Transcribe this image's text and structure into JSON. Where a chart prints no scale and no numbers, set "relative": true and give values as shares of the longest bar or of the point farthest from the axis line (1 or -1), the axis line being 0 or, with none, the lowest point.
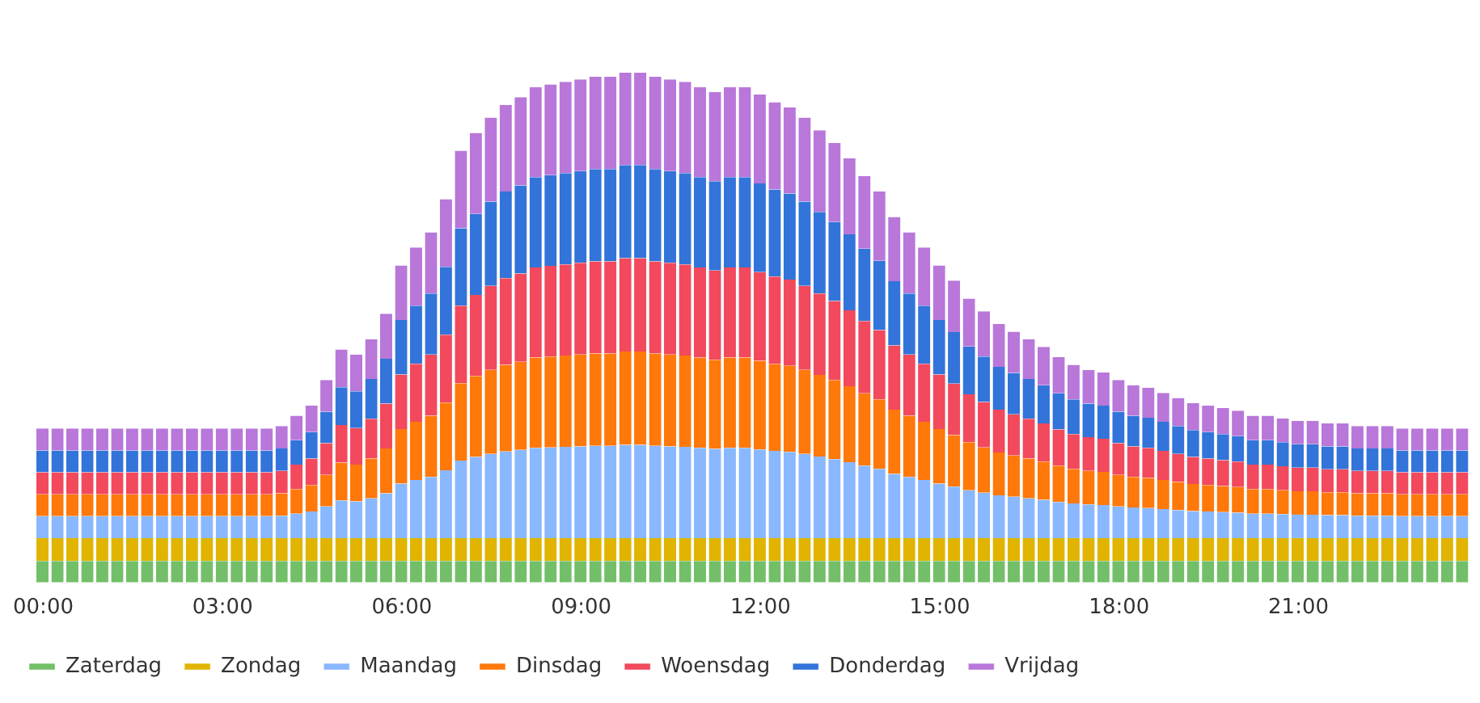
{
  "chart_data": {
    "type": "bar",
    "stacked": true,
    "relative": true,
    "legend": "bottom left",
    "grid": false,
    "tick_labels": "x",
    "categories": [
      "00:00",
      null,
      null,
      null,
      null,
      null,
      null,
      null,
      null,
      null,
      null,
      null,
      "03:00",
      null,
      null,
      null,
      null,
      null,
      null,
      null,
      null,
      null,
      null,
      null,
      "06:00",
      null,
      null,
      null,
      null,
      null,
      null,
      null,
      null,
      null,
      null,
      null,
      "09:00",
      null,
      null,
      null,
      null,
      null,
      null,
      null,
      null,
      null,
      null,
      null,
      "12:00",
      null,
      null,
      null,
      null,
      null,
      null,
      null,
      null,
      null,
      null,
      null,
      "15:00",
      null,
      null,
      null,
      null,
      null,
      null,
      null,
      null,
      null,
      null,
      null,
      "18:00",
      null,
      null,
      null,
      null,
      null,
      null,
      null,
      null,
      null,
      null,
      null,
      "21:00",
      null,
      null,
      null,
      null,
      null,
      null,
      null,
      null,
      null,
      null,
      null
    ],
    "series": [
      {
        "name": "Zaterdag",
        "color": "#73bf69",
        "values": [
          0.042,
          0.042,
          0.042,
          0.042,
          0.042,
          0.042,
          0.042,
          0.042,
          0.042,
          0.042,
          0.042,
          0.042,
          0.042,
          0.042,
          0.042,
          0.042,
          0.042,
          0.042,
          0.042,
          0.042,
          0.042,
          0.042,
          0.042,
          0.042,
          0.042,
          0.042,
          0.042,
          0.042,
          0.042,
          0.042,
          0.042,
          0.042,
          0.042,
          0.042,
          0.042,
          0.042,
          0.042,
          0.042,
          0.042,
          0.042,
          0.042,
          0.042,
          0.042,
          0.042,
          0.042,
          0.042,
          0.042,
          0.042,
          0.042,
          0.042,
          0.042,
          0.042,
          0.042,
          0.042,
          0.042,
          0.042,
          0.042,
          0.042,
          0.042,
          0.042,
          0.042,
          0.042,
          0.042,
          0.042,
          0.042,
          0.042,
          0.042,
          0.042,
          0.042,
          0.042,
          0.042,
          0.042,
          0.042,
          0.042,
          0.042,
          0.042,
          0.042,
          0.042,
          0.042,
          0.042,
          0.042,
          0.042,
          0.042,
          0.042,
          0.042,
          0.042,
          0.042,
          0.042,
          0.042,
          0.042,
          0.042,
          0.042,
          0.042,
          0.042,
          0.042,
          0.042
        ]
      },
      {
        "name": "Zondag",
        "color": "#e0b400",
        "values": [
          0.045,
          0.045,
          0.045,
          0.045,
          0.045,
          0.045,
          0.045,
          0.045,
          0.045,
          0.045,
          0.045,
          0.045,
          0.045,
          0.045,
          0.045,
          0.045,
          0.045,
          0.045,
          0.045,
          0.045,
          0.045,
          0.045,
          0.045,
          0.045,
          0.045,
          0.045,
          0.045,
          0.045,
          0.045,
          0.045,
          0.045,
          0.045,
          0.045,
          0.045,
          0.045,
          0.045,
          0.045,
          0.045,
          0.045,
          0.045,
          0.045,
          0.045,
          0.045,
          0.045,
          0.045,
          0.045,
          0.045,
          0.045,
          0.045,
          0.045,
          0.045,
          0.045,
          0.045,
          0.045,
          0.045,
          0.045,
          0.045,
          0.045,
          0.045,
          0.045,
          0.045,
          0.045,
          0.045,
          0.045,
          0.045,
          0.045,
          0.045,
          0.045,
          0.045,
          0.045,
          0.045,
          0.045,
          0.045,
          0.045,
          0.045,
          0.045,
          0.045,
          0.045,
          0.045,
          0.045,
          0.045,
          0.045,
          0.045,
          0.045,
          0.045,
          0.045,
          0.045,
          0.045,
          0.045,
          0.045,
          0.045,
          0.045,
          0.045,
          0.045,
          0.045,
          0.045
        ]
      },
      {
        "name": "Maandag",
        "color": "#8ab8ff",
        "values": [
          0.043,
          0.043,
          0.043,
          0.043,
          0.043,
          0.043,
          0.043,
          0.043,
          0.043,
          0.043,
          0.043,
          0.043,
          0.043,
          0.043,
          0.043,
          0.043,
          0.044,
          0.048,
          0.052,
          0.062,
          0.074,
          0.072,
          0.078,
          0.088,
          0.107,
          0.114,
          0.12,
          0.133,
          0.152,
          0.159,
          0.165,
          0.17,
          0.173,
          0.177,
          0.178,
          0.179,
          0.18,
          0.181,
          0.181,
          0.183,
          0.183,
          0.181,
          0.18,
          0.179,
          0.177,
          0.175,
          0.177,
          0.177,
          0.174,
          0.171,
          0.169,
          0.165,
          0.16,
          0.155,
          0.149,
          0.142,
          0.136,
          0.126,
          0.12,
          0.114,
          0.107,
          0.101,
          0.094,
          0.089,
          0.084,
          0.081,
          0.078,
          0.075,
          0.071,
          0.068,
          0.066,
          0.065,
          0.062,
          0.06,
          0.059,
          0.057,
          0.055,
          0.053,
          0.052,
          0.051,
          0.05,
          0.048,
          0.048,
          0.047,
          0.046,
          0.046,
          0.045,
          0.045,
          0.044,
          0.044,
          0.044,
          0.043,
          0.043,
          0.043,
          0.043,
          0.043
        ]
      },
      {
        "name": "Dinsdag",
        "color": "#ff780a",
        "values": [
          0.043,
          0.043,
          0.043,
          0.043,
          0.043,
          0.043,
          0.043,
          0.043,
          0.043,
          0.043,
          0.043,
          0.043,
          0.043,
          0.043,
          0.043,
          0.043,
          0.044,
          0.048,
          0.052,
          0.062,
          0.074,
          0.072,
          0.078,
          0.088,
          0.107,
          0.114,
          0.12,
          0.133,
          0.152,
          0.159,
          0.165,
          0.17,
          0.173,
          0.177,
          0.178,
          0.179,
          0.18,
          0.181,
          0.181,
          0.183,
          0.183,
          0.181,
          0.18,
          0.179,
          0.177,
          0.175,
          0.177,
          0.177,
          0.174,
          0.171,
          0.169,
          0.165,
          0.16,
          0.155,
          0.149,
          0.142,
          0.136,
          0.126,
          0.12,
          0.114,
          0.107,
          0.101,
          0.094,
          0.089,
          0.084,
          0.081,
          0.078,
          0.075,
          0.071,
          0.068,
          0.066,
          0.065,
          0.062,
          0.06,
          0.059,
          0.057,
          0.055,
          0.053,
          0.052,
          0.051,
          0.05,
          0.048,
          0.048,
          0.047,
          0.046,
          0.046,
          0.045,
          0.045,
          0.044,
          0.044,
          0.044,
          0.043,
          0.043,
          0.043,
          0.043,
          0.043
        ]
      },
      {
        "name": "Woensdag",
        "color": "#f2495c",
        "values": [
          0.043,
          0.043,
          0.043,
          0.043,
          0.043,
          0.043,
          0.043,
          0.043,
          0.043,
          0.043,
          0.043,
          0.043,
          0.043,
          0.043,
          0.043,
          0.043,
          0.044,
          0.048,
          0.052,
          0.062,
          0.074,
          0.072,
          0.078,
          0.088,
          0.107,
          0.114,
          0.12,
          0.133,
          0.152,
          0.159,
          0.165,
          0.17,
          0.173,
          0.177,
          0.178,
          0.179,
          0.18,
          0.181,
          0.181,
          0.183,
          0.183,
          0.181,
          0.18,
          0.179,
          0.177,
          0.175,
          0.177,
          0.177,
          0.174,
          0.171,
          0.169,
          0.165,
          0.16,
          0.155,
          0.149,
          0.142,
          0.136,
          0.126,
          0.12,
          0.114,
          0.107,
          0.101,
          0.094,
          0.089,
          0.084,
          0.081,
          0.078,
          0.075,
          0.071,
          0.068,
          0.066,
          0.065,
          0.062,
          0.06,
          0.059,
          0.057,
          0.055,
          0.053,
          0.052,
          0.051,
          0.05,
          0.048,
          0.048,
          0.047,
          0.046,
          0.046,
          0.045,
          0.045,
          0.044,
          0.044,
          0.044,
          0.043,
          0.043,
          0.043,
          0.043,
          0.043
        ]
      },
      {
        "name": "Donderdag",
        "color": "#3274d9",
        "values": [
          0.043,
          0.043,
          0.043,
          0.043,
          0.043,
          0.043,
          0.043,
          0.043,
          0.043,
          0.043,
          0.043,
          0.043,
          0.043,
          0.043,
          0.043,
          0.043,
          0.044,
          0.048,
          0.052,
          0.062,
          0.074,
          0.072,
          0.078,
          0.088,
          0.107,
          0.114,
          0.12,
          0.133,
          0.152,
          0.159,
          0.165,
          0.17,
          0.173,
          0.177,
          0.178,
          0.179,
          0.18,
          0.181,
          0.181,
          0.183,
          0.183,
          0.181,
          0.18,
          0.179,
          0.177,
          0.175,
          0.177,
          0.177,
          0.174,
          0.171,
          0.169,
          0.165,
          0.16,
          0.155,
          0.149,
          0.142,
          0.136,
          0.126,
          0.12,
          0.114,
          0.107,
          0.101,
          0.094,
          0.089,
          0.084,
          0.081,
          0.078,
          0.075,
          0.071,
          0.068,
          0.066,
          0.065,
          0.062,
          0.06,
          0.059,
          0.057,
          0.055,
          0.053,
          0.052,
          0.051,
          0.05,
          0.048,
          0.048,
          0.047,
          0.046,
          0.046,
          0.045,
          0.045,
          0.044,
          0.044,
          0.044,
          0.043,
          0.043,
          0.043,
          0.043,
          0.043
        ]
      },
      {
        "name": "Vrijdag",
        "color": "#b877d9",
        "values": [
          0.043,
          0.043,
          0.043,
          0.043,
          0.043,
          0.043,
          0.043,
          0.043,
          0.043,
          0.043,
          0.043,
          0.043,
          0.043,
          0.043,
          0.043,
          0.043,
          0.044,
          0.048,
          0.052,
          0.062,
          0.074,
          0.072,
          0.078,
          0.088,
          0.107,
          0.114,
          0.12,
          0.133,
          0.152,
          0.159,
          0.165,
          0.17,
          0.173,
          0.177,
          0.178,
          0.179,
          0.18,
          0.181,
          0.181,
          0.181,
          0.181,
          0.181,
          0.18,
          0.179,
          0.177,
          0.175,
          0.177,
          0.177,
          0.174,
          0.171,
          0.169,
          0.165,
          0.16,
          0.155,
          0.149,
          0.142,
          0.136,
          0.126,
          0.12,
          0.114,
          0.107,
          0.101,
          0.094,
          0.089,
          0.084,
          0.081,
          0.078,
          0.075,
          0.071,
          0.068,
          0.066,
          0.065,
          0.062,
          0.06,
          0.059,
          0.057,
          0.055,
          0.053,
          0.052,
          0.051,
          0.05,
          0.048,
          0.048,
          0.047,
          0.046,
          0.046,
          0.045,
          0.045,
          0.044,
          0.044,
          0.044,
          0.043,
          0.043,
          0.043,
          0.043,
          0.043
        ]
      }
    ]
  }
}
